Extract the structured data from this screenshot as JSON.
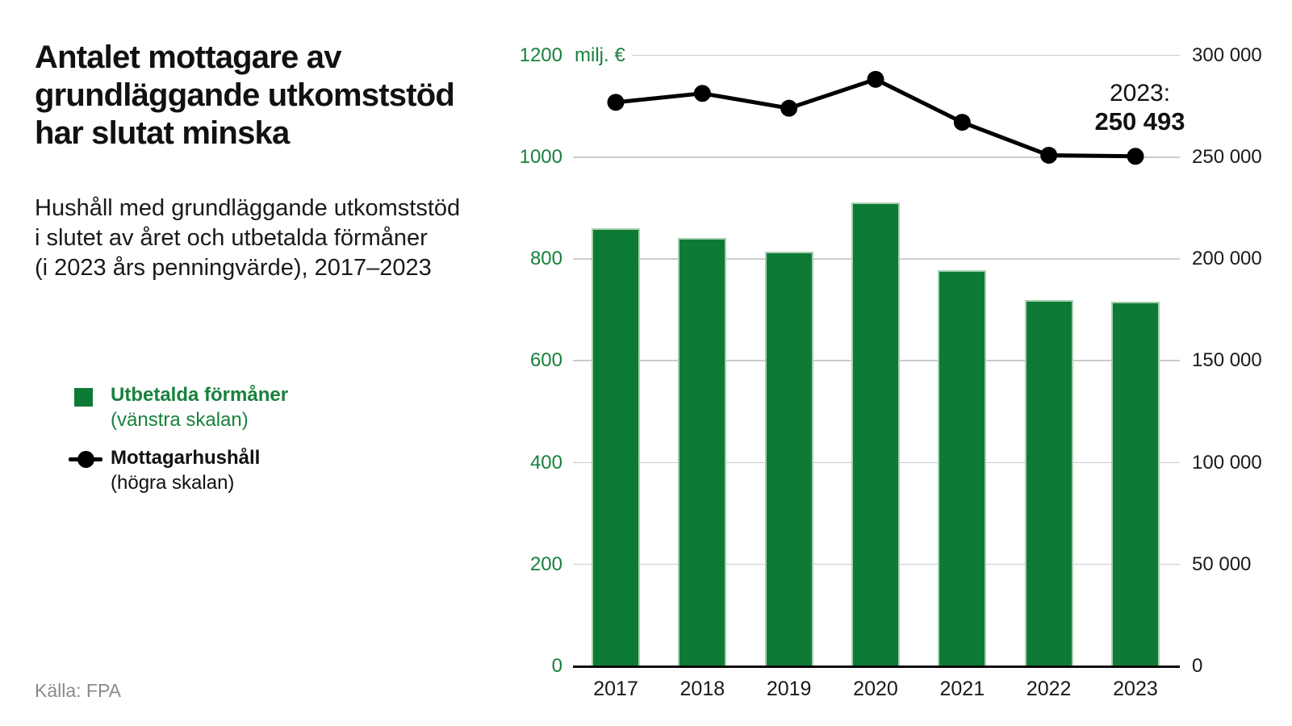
{
  "header": {
    "title_lines": [
      "Antalet mottagare av",
      "grundläggande utkomststöd",
      "har slutat minska"
    ],
    "subtitle_lines": [
      "Hushåll med grundläggande utkomststöd",
      "i slutet av året och utbetalda förmåner",
      "(i 2023 års penningvärde), 2017–2023"
    ]
  },
  "legend": {
    "items": [
      {
        "label": "Utbetalda förmåner",
        "sublabel": "(vänstra skalan)",
        "swatch": "green-square",
        "color": "#0d7b35"
      },
      {
        "label": "Mottagarhushåll",
        "sublabel": "(högra skalan)",
        "swatch": "black-line-dot",
        "color": "#000000"
      }
    ]
  },
  "source": "Källa: FPA",
  "colors": {
    "bar_green": "#0d7b35",
    "text_green": "#17813d",
    "line_black": "#000000",
    "gridline_gray": "#cccccc"
  },
  "chart_data": {
    "type": "combo",
    "categories": [
      "2017",
      "2018",
      "2019",
      "2020",
      "2021",
      "2022",
      "2023"
    ],
    "series": [
      {
        "name": "Utbetalda förmåner (vänstra skalan)",
        "type": "bar",
        "axis": "left",
        "values": [
          860,
          842,
          814,
          911,
          778,
          719,
          716
        ]
      },
      {
        "name": "Mottagarhushåll (högra skalan)",
        "type": "line",
        "axis": "right",
        "values": [
          277000,
          281400,
          274100,
          288300,
          267200,
          251000,
          250493
        ]
      }
    ],
    "left_axis": {
      "unit_label": "milj. €",
      "min": 0,
      "max": 1200,
      "tick_step": 200,
      "tick_labels": [
        "0",
        "200",
        "400",
        "600",
        "800",
        "1000",
        "1200"
      ]
    },
    "right_axis": {
      "min": 0,
      "max": 300000,
      "tick_step": 50000,
      "tick_labels": [
        "0",
        "50 000",
        "100 000",
        "150 000",
        "200 000",
        "250 000",
        "300 000"
      ]
    },
    "annotation": {
      "label": "2023:",
      "value": "250 493"
    },
    "grid": true,
    "legend_position": "left",
    "title": "Antalet mottagare av grundläggande utkomststöd har slutat minska"
  }
}
